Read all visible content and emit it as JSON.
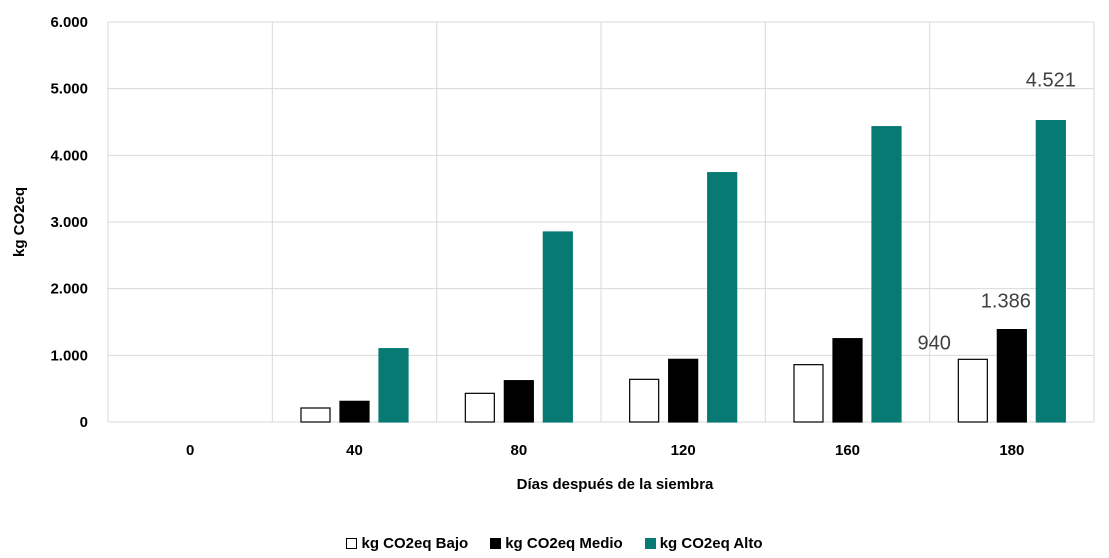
{
  "chart_data": {
    "type": "bar",
    "title": "",
    "xlabel": "Días después de la siembra",
    "ylabel": "kg CO2eq",
    "categories": [
      "0",
      "40",
      "80",
      "120",
      "160",
      "180"
    ],
    "ylim": [
      0,
      6000
    ],
    "yticks": [
      "0",
      "1.000",
      "2.000",
      "3.000",
      "4.000",
      "5.000",
      "6.000"
    ],
    "grid": true,
    "legend_position": "bottom",
    "series": [
      {
        "name": "kg CO2eq Bajo",
        "color": "#ffffff",
        "stroke": "#000000",
        "values": [
          0,
          210,
          430,
          640,
          860,
          940
        ]
      },
      {
        "name": "kg CO2eq Medio",
        "color": "#000000",
        "stroke": "#000000",
        "values": [
          0,
          310,
          620,
          940,
          1250,
          1386
        ]
      },
      {
        "name": "kg CO2eq Alto",
        "color": "#077a73",
        "stroke": "#077a73",
        "values": [
          0,
          1100,
          2850,
          3740,
          4430,
          4521
        ]
      }
    ],
    "data_labels": [
      {
        "series": 0,
        "category": 5,
        "text": "940"
      },
      {
        "series": 1,
        "category": 5,
        "text": "1.386"
      },
      {
        "series": 2,
        "category": 5,
        "text": "4.521"
      }
    ]
  }
}
